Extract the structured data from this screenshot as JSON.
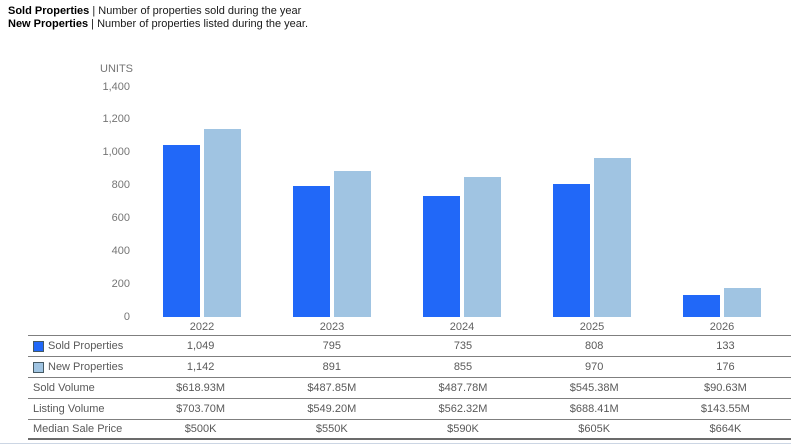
{
  "header": {
    "line1": {
      "term": "Sold Properties",
      "desc": " | Number of properties sold during the year"
    },
    "line2": {
      "term": "New Properties",
      "desc": " | Number of properties listed during the year."
    }
  },
  "chart_data": {
    "type": "bar",
    "title": "",
    "ylabel": "UNITS",
    "xlabel": "",
    "categories": [
      "2022",
      "2023",
      "2024",
      "2025",
      "2026"
    ],
    "series": [
      {
        "name": "Sold Properties",
        "color": "#2168f8",
        "values": [
          1049,
          795,
          735,
          808,
          133
        ]
      },
      {
        "name": "New Properties",
        "color": "#a0c4e2",
        "values": [
          1142,
          891,
          855,
          970,
          176
        ]
      }
    ],
    "ylim": [
      0,
      1400
    ],
    "yticks": [
      {
        "label": "1,400",
        "value": 1400
      },
      {
        "label": "1,200",
        "value": 1200
      },
      {
        "label": "1,000",
        "value": 1000
      },
      {
        "label": "800",
        "value": 800
      },
      {
        "label": "600",
        "value": 600
      },
      {
        "label": "400",
        "value": 400
      },
      {
        "label": "200",
        "value": 200
      },
      {
        "label": "0",
        "value": 0
      }
    ],
    "grid": false,
    "legend_position": "table-below"
  },
  "table": {
    "columns": [
      "2022",
      "2023",
      "2024",
      "2025",
      "2026"
    ],
    "rows": [
      {
        "id": "sold-properties",
        "label": "Sold Properties",
        "swatch": "#2168f8",
        "values": [
          "1,049",
          "795",
          "735",
          "808",
          "133"
        ]
      },
      {
        "id": "new-properties",
        "label": "New Properties",
        "swatch": "#a0c4e2",
        "values": [
          "1,142",
          "891",
          "855",
          "970",
          "176"
        ]
      },
      {
        "id": "sold-volume",
        "label": "Sold Volume",
        "swatch": null,
        "values": [
          "$618.93M",
          "$487.85M",
          "$487.78M",
          "$545.38M",
          "$90.63M"
        ]
      },
      {
        "id": "listing-volume",
        "label": "Listing Volume",
        "swatch": null,
        "values": [
          "$703.70M",
          "$549.20M",
          "$562.32M",
          "$688.41M",
          "$143.55M"
        ]
      },
      {
        "id": "median-sale-price",
        "label": "Median Sale Price",
        "swatch": null,
        "values": [
          "$500K",
          "$550K",
          "$590K",
          "$605K",
          "$664K"
        ]
      }
    ]
  },
  "colors": {
    "sold_bar": "#2168f8",
    "new_bar": "#a0c4e2",
    "axis_text": "#757575",
    "x_label_text": "#616161",
    "table_text": "#595959",
    "table_border": "#7f7f7f",
    "bottom_divider": "#ccd6e4"
  }
}
